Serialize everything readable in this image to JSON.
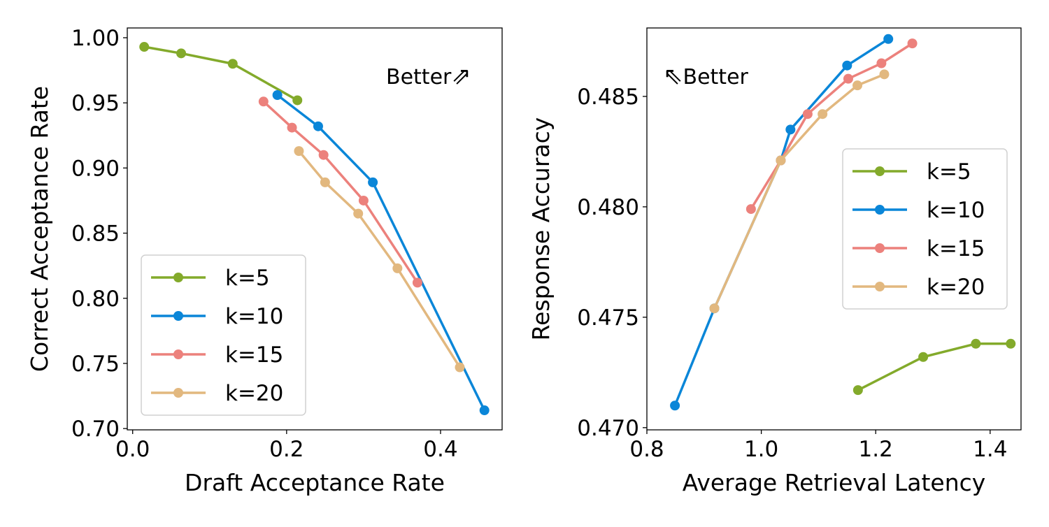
{
  "chart_data": [
    {
      "type": "line",
      "xlabel": "Draft Acceptance Rate",
      "ylabel": "Correct Acceptance Rate",
      "xlim": [
        -0.007,
        0.48
      ],
      "ylim": [
        0.699,
        1.0075
      ],
      "xticks": [
        0.0,
        0.2,
        0.4
      ],
      "xtick_labels": [
        "0.0",
        "0.2",
        "0.4"
      ],
      "yticks": [
        0.7,
        0.75,
        0.8,
        0.85,
        0.9,
        0.95,
        1.0
      ],
      "ytick_labels": [
        "0.70",
        "0.75",
        "0.80",
        "0.85",
        "0.90",
        "0.95",
        "1.00"
      ],
      "grid": false,
      "legend_position": "lower-left",
      "annotation": {
        "text": "Better",
        "arrow": "⇗",
        "position": "top-right"
      },
      "series": [
        {
          "name": "k=5",
          "color": "#83aa2b",
          "points": [
            [
              0.015,
              0.993
            ],
            [
              0.063,
              0.988
            ],
            [
              0.13,
              0.98
            ],
            [
              0.214,
              0.952
            ]
          ]
        },
        {
          "name": "k=10",
          "color": "#0a86d8",
          "points": [
            [
              0.188,
              0.956
            ],
            [
              0.241,
              0.932
            ],
            [
              0.312,
              0.889
            ],
            [
              0.457,
              0.714
            ]
          ]
        },
        {
          "name": "k=15",
          "color": "#ec817c",
          "points": [
            [
              0.17,
              0.951
            ],
            [
              0.207,
              0.931
            ],
            [
              0.248,
              0.91
            ],
            [
              0.3,
              0.875
            ],
            [
              0.37,
              0.812
            ]
          ]
        },
        {
          "name": "k=20",
          "color": "#e2b87f",
          "points": [
            [
              0.216,
              0.913
            ],
            [
              0.25,
              0.889
            ],
            [
              0.293,
              0.865
            ],
            [
              0.344,
              0.823
            ],
            [
              0.425,
              0.747
            ]
          ]
        }
      ]
    },
    {
      "type": "line",
      "xlabel": "Average Retrieval Latency",
      "ylabel": "Response Accuracy",
      "xlim": [
        0.8,
        1.454
      ],
      "ylim": [
        0.4699,
        0.4881
      ],
      "xticks": [
        0.8,
        1.0,
        1.2,
        1.4
      ],
      "xtick_labels": [
        "0.8",
        "1.0",
        "1.2",
        "1.4"
      ],
      "yticks": [
        0.47,
        0.475,
        0.48,
        0.485
      ],
      "ytick_labels": [
        "0.470",
        "0.475",
        "0.480",
        "0.485"
      ],
      "grid": false,
      "legend_position": "center-right",
      "annotation": {
        "text": "Better",
        "arrow": "⇖",
        "position": "top-left"
      },
      "series": [
        {
          "name": "k=5",
          "color": "#83aa2b",
          "points": [
            [
              1.169,
              0.4717
            ],
            [
              1.283,
              0.4732
            ],
            [
              1.375,
              0.4738
            ],
            [
              1.436,
              0.4738
            ]
          ]
        },
        {
          "name": "k=10",
          "color": "#0a86d8",
          "points": [
            [
              0.849,
              0.471
            ],
            [
              0.918,
              0.4754
            ],
            [
              1.034,
              0.4821
            ],
            [
              1.051,
              0.4835
            ],
            [
              1.15,
              0.4864
            ],
            [
              1.222,
              0.4876
            ]
          ]
        },
        {
          "name": "k=15",
          "color": "#ec817c",
          "points": [
            [
              0.982,
              0.4799
            ],
            [
              1.034,
              0.4821
            ],
            [
              1.081,
              0.4842
            ],
            [
              1.152,
              0.4858
            ],
            [
              1.21,
              0.4865
            ],
            [
              1.264,
              0.4874
            ]
          ]
        },
        {
          "name": "k=20",
          "color": "#e2b87f",
          "points": [
            [
              0.918,
              0.4754
            ],
            [
              1.034,
              0.4821
            ],
            [
              1.107,
              0.4842
            ],
            [
              1.168,
              0.4855
            ],
            [
              1.215,
              0.486
            ]
          ]
        }
      ]
    }
  ]
}
